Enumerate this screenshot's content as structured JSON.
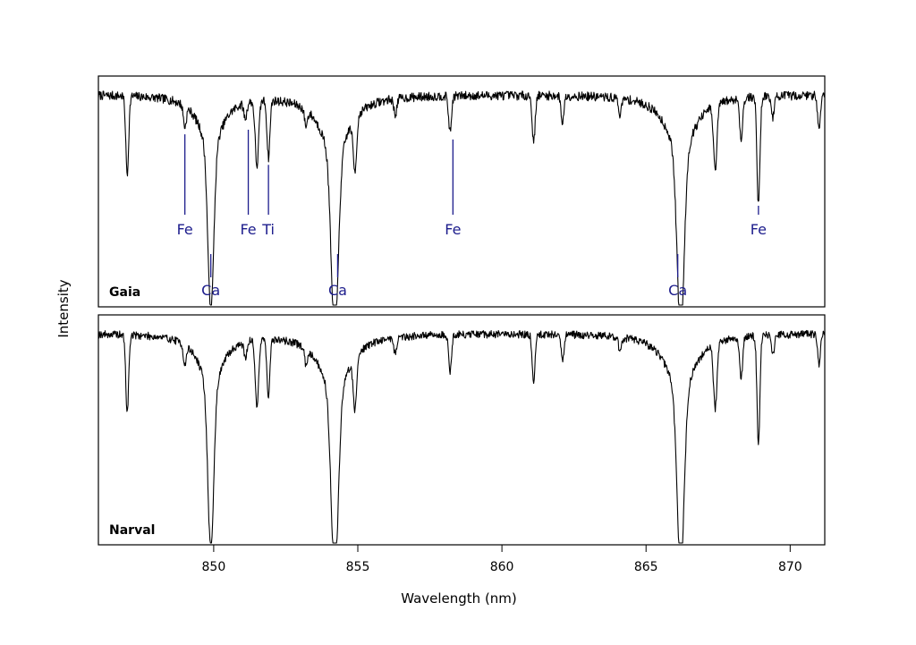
{
  "chart_data": {
    "type": "line",
    "xlabel": "Wavelength (nm)",
    "ylabel": "Intensity",
    "xlim": [
      846.0,
      871.2
    ],
    "xticks": [
      850,
      855,
      860,
      865,
      870
    ],
    "grid": false,
    "continuum": 0.97,
    "absorption_lines": [
      {
        "wl": 847.0,
        "depth": 0.3,
        "width": 0.05
      },
      {
        "wl": 849.0,
        "depth": 0.08,
        "width": 0.05
      },
      {
        "wl": 849.9,
        "depth": 0.62,
        "width": 0.1,
        "wing": 0.45
      },
      {
        "wl": 851.1,
        "depth": 0.06,
        "width": 0.05
      },
      {
        "wl": 851.5,
        "depth": 0.25,
        "width": 0.06
      },
      {
        "wl": 851.9,
        "depth": 0.22,
        "width": 0.05
      },
      {
        "wl": 853.2,
        "depth": 0.06,
        "width": 0.05
      },
      {
        "wl": 854.2,
        "depth": 0.7,
        "width": 0.12,
        "wing": 0.55
      },
      {
        "wl": 854.9,
        "depth": 0.2,
        "width": 0.06
      },
      {
        "wl": 856.3,
        "depth": 0.06,
        "width": 0.05
      },
      {
        "wl": 858.2,
        "depth": 0.14,
        "width": 0.05
      },
      {
        "wl": 861.1,
        "depth": 0.18,
        "width": 0.05
      },
      {
        "wl": 862.1,
        "depth": 0.1,
        "width": 0.05
      },
      {
        "wl": 864.1,
        "depth": 0.06,
        "width": 0.05
      },
      {
        "wl": 866.2,
        "depth": 0.68,
        "width": 0.12,
        "wing": 0.55
      },
      {
        "wl": 867.4,
        "depth": 0.25,
        "width": 0.06
      },
      {
        "wl": 868.3,
        "depth": 0.16,
        "width": 0.05
      },
      {
        "wl": 868.9,
        "depth": 0.42,
        "width": 0.05
      },
      {
        "wl": 869.4,
        "depth": 0.08,
        "width": 0.05
      },
      {
        "wl": 871.0,
        "depth": 0.12,
        "width": 0.05
      }
    ],
    "panels": [
      {
        "name": "Gaia",
        "noise": 0.035,
        "seed": 7,
        "labels": [
          {
            "text": "Fe",
            "wl": 849.0,
            "pos": "above"
          },
          {
            "text": "Ca",
            "wl": 849.9,
            "pos": "below"
          },
          {
            "text": "Fe",
            "wl": 851.2,
            "pos": "above"
          },
          {
            "text": "Ti",
            "wl": 851.9,
            "pos": "above"
          },
          {
            "text": "Ca",
            "wl": 854.3,
            "pos": "below"
          },
          {
            "text": "Fe",
            "wl": 858.3,
            "pos": "above"
          },
          {
            "text": "Ca",
            "wl": 866.1,
            "pos": "below"
          },
          {
            "text": "Fe",
            "wl": 868.9,
            "pos": "above"
          }
        ]
      },
      {
        "name": "Narval",
        "noise": 0.03,
        "seed": 19,
        "labels": []
      }
    ]
  }
}
